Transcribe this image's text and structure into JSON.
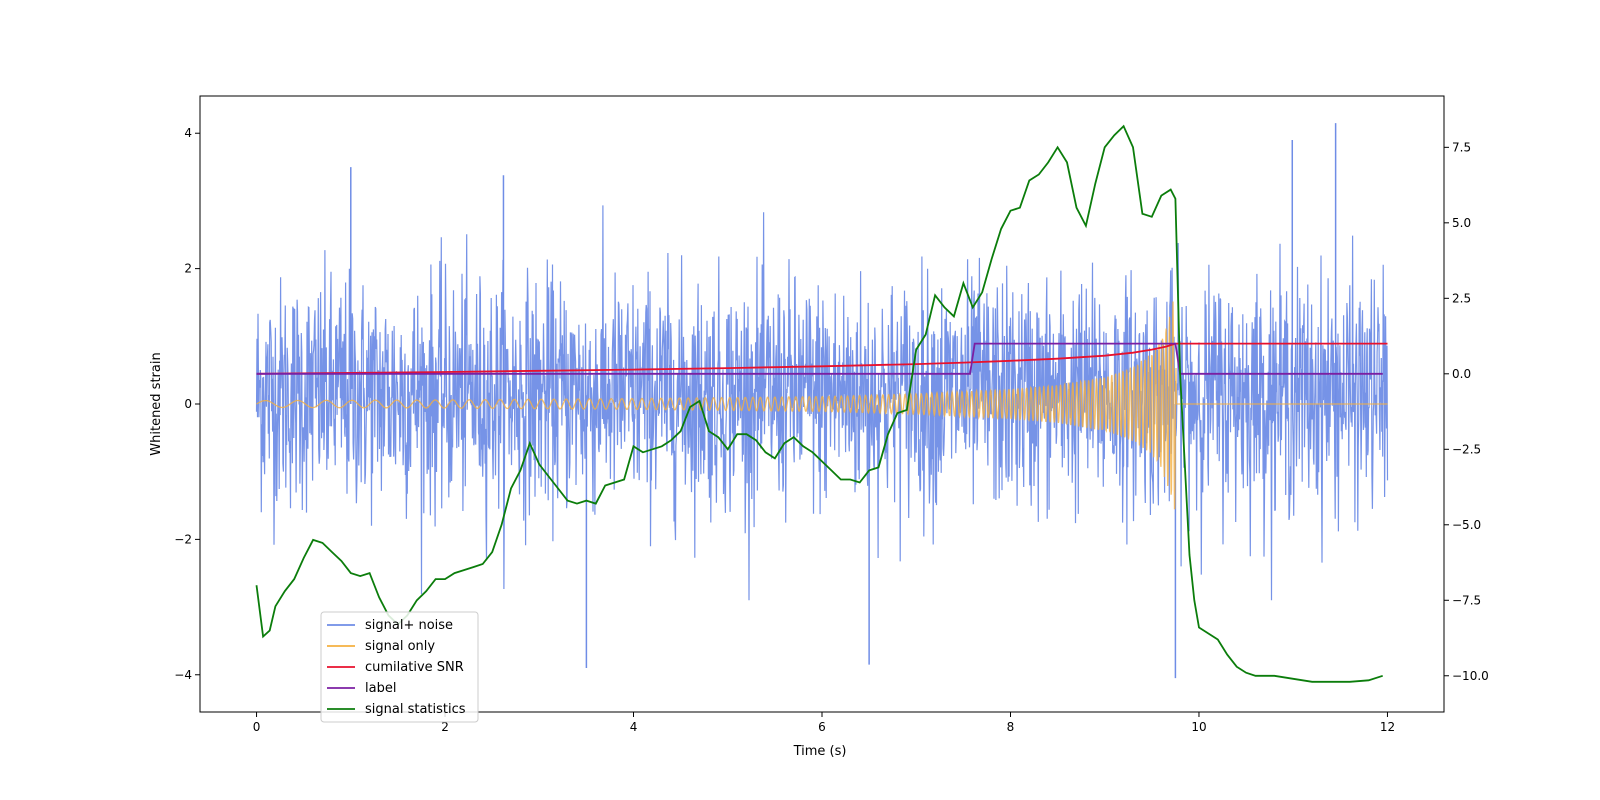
{
  "chart_data": {
    "type": "line",
    "xlabel": "Time (s)",
    "ylabel": "Whitened strain",
    "xlim": [
      -0.6,
      12.6
    ],
    "ylim_left": [
      -4.55,
      4.55
    ],
    "ylim_right": [
      -11.2,
      9.2
    ],
    "x_ticks": [
      0,
      2,
      4,
      6,
      8,
      10,
      12
    ],
    "x_tick_labels": [
      "0",
      "2",
      "4",
      "6",
      "8",
      "10",
      "12"
    ],
    "y_left_ticks": [
      -4,
      -2,
      0,
      2,
      4
    ],
    "y_left_tick_labels": [
      "−4",
      "−2",
      "0",
      "2",
      "4"
    ],
    "y_right_ticks": [
      -10,
      -7.5,
      -5,
      -2.5,
      0,
      2.5,
      5,
      7.5
    ],
    "y_right_tick_labels": [
      "−10.0",
      "−7.5",
      "−5.0",
      "−2.5",
      "0.0",
      "2.5",
      "5.0",
      "7.5"
    ],
    "legend_location": "lower-left",
    "series": [
      {
        "name": "signal+ noise",
        "color": "#6f8de6",
        "axis": "left",
        "description": "whitened strain, gaussian noise envelope approx ±2.5 with spikes up to ±4.1, sampled 0–12 s",
        "x_range": [
          0,
          12
        ],
        "approx_envelope": [
          -2.5,
          2.5
        ],
        "peaks": [
          [
            1.0,
            3.5
          ],
          [
            2.62,
            3.38
          ],
          [
            9.75,
            -4.05
          ],
          [
            10.99,
            3.9
          ],
          [
            11.45,
            4.15
          ],
          [
            3.5,
            -3.9
          ],
          [
            6.5,
            -3.85
          ]
        ]
      },
      {
        "name": "signal only",
        "color": "#f5b041",
        "axis": "left",
        "description": "chirp: amplitude grows from 0.05 at t=0 to ~1.7 at merger t≈9.75 s, zero afterwards",
        "amplitude_points": {
          "t": [
            0,
            2,
            4,
            6,
            7,
            8,
            8.5,
            9,
            9.3,
            9.5,
            9.6,
            9.7,
            9.75,
            9.76,
            12
          ],
          "a": [
            0.05,
            0.06,
            0.08,
            0.11,
            0.15,
            0.22,
            0.28,
            0.4,
            0.55,
            0.75,
            0.95,
            1.35,
            1.7,
            0,
            0
          ]
        }
      },
      {
        "name": "cumilative SNR",
        "color": "#e8112d",
        "axis": "right",
        "x": [
          0,
          1,
          2,
          3,
          4,
          5,
          6,
          7,
          7.5,
          8,
          8.5,
          9,
          9.3,
          9.5,
          9.65,
          9.75,
          10,
          12
        ],
        "y": [
          0.0,
          0.03,
          0.06,
          0.1,
          0.14,
          0.19,
          0.25,
          0.32,
          0.37,
          0.43,
          0.5,
          0.6,
          0.7,
          0.8,
          0.9,
          1.0,
          1.0,
          1.0
        ]
      },
      {
        "name": "label",
        "color": "#7b1fa2",
        "axis": "right",
        "x": [
          0,
          7.57,
          7.62,
          9.75,
          9.8,
          11.95
        ],
        "y": [
          0,
          0,
          1,
          1,
          0,
          0
        ]
      },
      {
        "name": "signal statistics",
        "color": "#0b7d0b",
        "axis": "right",
        "x": [
          0,
          0.07,
          0.14,
          0.2,
          0.3,
          0.4,
          0.5,
          0.6,
          0.7,
          0.8,
          0.9,
          1.0,
          1.1,
          1.2,
          1.3,
          1.4,
          1.5,
          1.6,
          1.7,
          1.8,
          1.9,
          2.0,
          2.1,
          2.2,
          2.3,
          2.4,
          2.5,
          2.6,
          2.7,
          2.8,
          2.9,
          3.0,
          3.1,
          3.2,
          3.3,
          3.4,
          3.5,
          3.6,
          3.7,
          3.8,
          3.9,
          4.0,
          4.1,
          4.2,
          4.3,
          4.4,
          4.5,
          4.6,
          4.7,
          4.8,
          4.9,
          5.0,
          5.1,
          5.2,
          5.3,
          5.4,
          5.5,
          5.6,
          5.7,
          5.8,
          5.9,
          6.0,
          6.1,
          6.2,
          6.3,
          6.4,
          6.5,
          6.6,
          6.7,
          6.8,
          6.9,
          7.0,
          7.1,
          7.2,
          7.3,
          7.4,
          7.5,
          7.6,
          7.7,
          7.8,
          7.9,
          8.0,
          8.1,
          8.2,
          8.3,
          8.4,
          8.5,
          8.6,
          8.7,
          8.8,
          8.9,
          9.0,
          9.1,
          9.2,
          9.3,
          9.4,
          9.5,
          9.6,
          9.7,
          9.75,
          9.8,
          9.85,
          9.9,
          9.95,
          10.0,
          10.1,
          10.2,
          10.3,
          10.4,
          10.5,
          10.6,
          10.7,
          10.8,
          10.9,
          11.0,
          11.2,
          11.4,
          11.6,
          11.8,
          11.95
        ],
        "y": [
          -7.0,
          -8.7,
          -8.5,
          -7.7,
          -7.2,
          -6.8,
          -6.1,
          -5.5,
          -5.6,
          -5.9,
          -6.2,
          -6.6,
          -6.7,
          -6.6,
          -7.4,
          -8.0,
          -8.3,
          -8.0,
          -7.5,
          -7.2,
          -6.8,
          -6.8,
          -6.6,
          -6.5,
          -6.4,
          -6.3,
          -5.9,
          -5.0,
          -3.8,
          -3.2,
          -2.3,
          -3.0,
          -3.4,
          -3.8,
          -4.2,
          -4.3,
          -4.2,
          -4.3,
          -3.7,
          -3.6,
          -3.5,
          -2.4,
          -2.6,
          -2.5,
          -2.4,
          -2.2,
          -1.9,
          -1.1,
          -0.9,
          -1.9,
          -2.1,
          -2.5,
          -2.0,
          -2.0,
          -2.2,
          -2.6,
          -2.8,
          -2.3,
          -2.1,
          -2.4,
          -2.6,
          -2.9,
          -3.2,
          -3.5,
          -3.5,
          -3.6,
          -3.2,
          -3.1,
          -2.0,
          -1.3,
          -1.2,
          0.8,
          1.3,
          2.6,
          2.2,
          1.9,
          3.0,
          2.2,
          2.7,
          3.8,
          4.8,
          5.4,
          5.5,
          6.4,
          6.6,
          7.0,
          7.5,
          7.0,
          5.5,
          4.9,
          6.3,
          7.5,
          7.9,
          8.2,
          7.5,
          5.3,
          5.2,
          5.9,
          6.1,
          5.8,
          0.0,
          -3.0,
          -6.0,
          -7.5,
          -8.4,
          -8.6,
          -8.8,
          -9.3,
          -9.7,
          -9.9,
          -10.0,
          -10.0,
          -10.0,
          -10.05,
          -10.1,
          -10.2,
          -10.2,
          -10.2,
          -10.15,
          -10.0
        ]
      }
    ]
  }
}
